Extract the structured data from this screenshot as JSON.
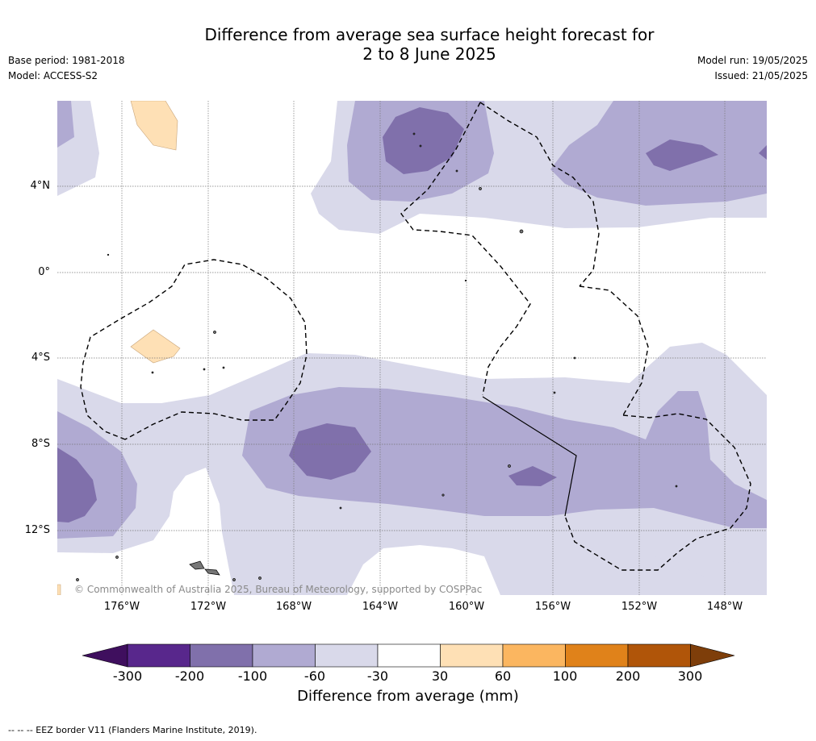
{
  "title_line1": "Difference from average sea surface height forecast for",
  "title_line2": "2 to 8 June 2025",
  "base_period": "Base period: 1981-2018",
  "model": "Model: ACCESS-S2",
  "model_run": "Model run: 19/05/2025",
  "issued": "Issued: 21/05/2025",
  "latitude_labels": [
    "4°N",
    "0°",
    "4°S",
    "8°S",
    "12°S"
  ],
  "longitude_labels": [
    "176°W",
    "172°W",
    "168°W",
    "164°W",
    "160°W",
    "156°W",
    "152°W",
    "148°W"
  ],
  "copyright": "© Commonwealth of Australia 2025, Bureau of Meteorology, supported by COSPPac",
  "colorbar": {
    "title": "Difference from average (mm)",
    "ticks": [
      "-300",
      "-200",
      "-100",
      "-60",
      "-30",
      "30",
      "60",
      "100",
      "200",
      "300"
    ],
    "colors": [
      "#3f0f5e",
      "#58278c",
      "#8070ab",
      "#b0aad2",
      "#d9d9ea",
      "#ffffff",
      "#fee0b5",
      "#fbb660",
      "#e0821a",
      "#b05509",
      "#7e3e0a"
    ]
  },
  "footnote": "-- -- -- EEZ border V11 (Flanders Marine Institute, 2019)."
}
